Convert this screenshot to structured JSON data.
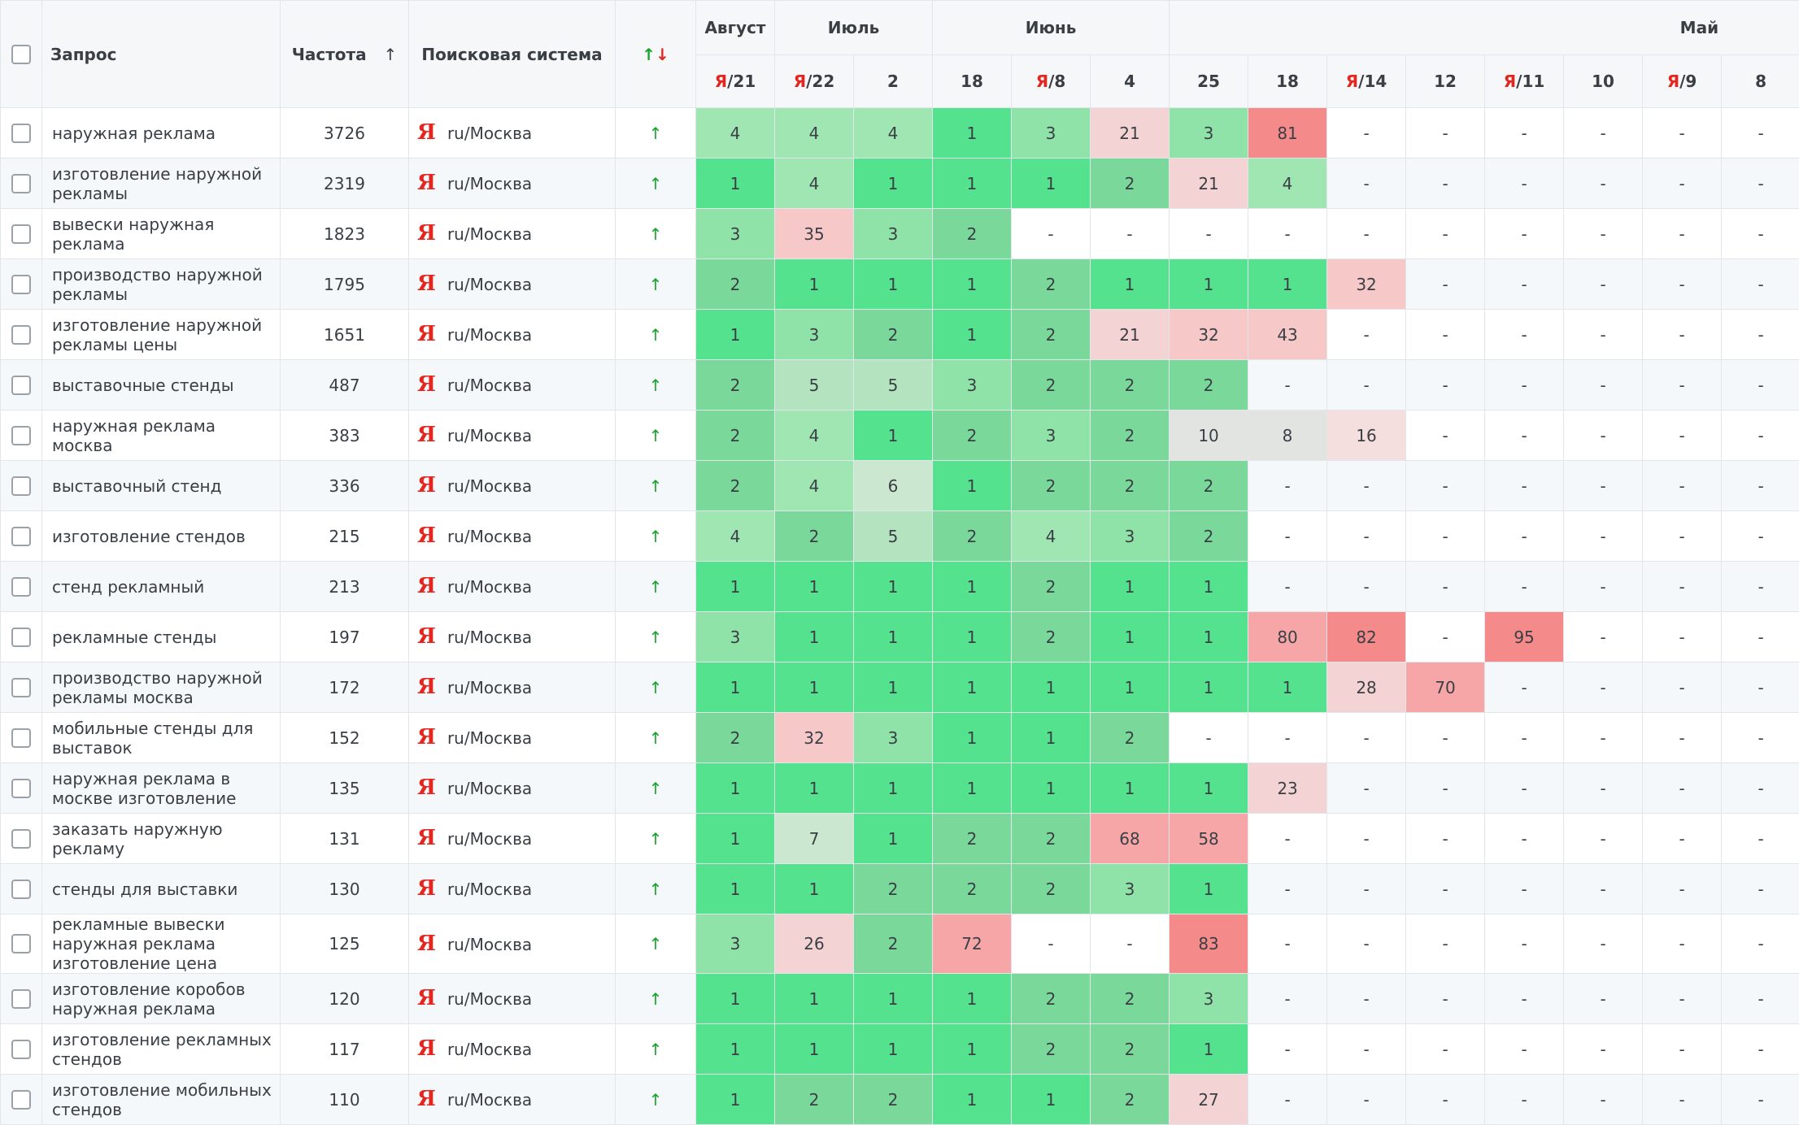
{
  "header": {
    "query": "Запрос",
    "frequency": "Частота",
    "frequency_sort": "↑",
    "engine": "Поисковая система",
    "trend": "↑↓",
    "groups": [
      {
        "label": "Август",
        "dates": [
          "Я/21"
        ]
      },
      {
        "label": "Июль",
        "dates": [
          "Я/22",
          "2"
        ]
      },
      {
        "label": "Июнь",
        "dates": [
          "18",
          "Я/8",
          "4"
        ]
      },
      {
        "label": "Май",
        "dates": [
          "25",
          "18",
          "Я/14",
          "12",
          "Я/11",
          "10",
          "Я/9",
          "8"
        ]
      }
    ]
  },
  "rows": [
    {
      "query": "наружная реклама",
      "frequency": 3726,
      "engine": "Я",
      "region": "ru/Москва",
      "trend": "↑",
      "positions": [
        4,
        4,
        4,
        1,
        3,
        21,
        3,
        81,
        "-",
        "-",
        "-",
        "-",
        "-",
        "-"
      ]
    },
    {
      "query": "изготовление наружной рекламы",
      "frequency": 2319,
      "engine": "Я",
      "region": "ru/Москва",
      "trend": "↑",
      "positions": [
        1,
        4,
        1,
        1,
        1,
        2,
        21,
        4,
        "-",
        "-",
        "-",
        "-",
        "-",
        "-"
      ]
    },
    {
      "query": "вывески наружная реклама",
      "frequency": 1823,
      "engine": "Я",
      "region": "ru/Москва",
      "trend": "↑",
      "positions": [
        3,
        35,
        3,
        2,
        "-",
        "-",
        "-",
        "-",
        "-",
        "-",
        "-",
        "-",
        "-",
        "-"
      ]
    },
    {
      "query": "производство наружной рекламы",
      "frequency": 1795,
      "engine": "Я",
      "region": "ru/Москва",
      "trend": "↑",
      "positions": [
        2,
        1,
        1,
        1,
        2,
        1,
        1,
        1,
        32,
        "-",
        "-",
        "-",
        "-",
        "-"
      ]
    },
    {
      "query": "изготовление наружной рекламы цены",
      "frequency": 1651,
      "engine": "Я",
      "region": "ru/Москва",
      "trend": "↑",
      "positions": [
        1,
        3,
        2,
        1,
        2,
        21,
        32,
        43,
        "-",
        "-",
        "-",
        "-",
        "-",
        "-"
      ]
    },
    {
      "query": "выставочные стенды",
      "frequency": 487,
      "engine": "Я",
      "region": "ru/Москва",
      "trend": "↑",
      "positions": [
        2,
        5,
        5,
        3,
        2,
        2,
        2,
        "-",
        "-",
        "-",
        "-",
        "-",
        "-",
        "-"
      ]
    },
    {
      "query": "наружная реклама москва",
      "frequency": 383,
      "engine": "Я",
      "region": "ru/Москва",
      "trend": "↑",
      "positions": [
        2,
        4,
        1,
        2,
        3,
        2,
        10,
        8,
        16,
        "-",
        "-",
        "-",
        "-",
        "-"
      ]
    },
    {
      "query": "выставочный стенд",
      "frequency": 336,
      "engine": "Я",
      "region": "ru/Москва",
      "trend": "↑",
      "positions": [
        2,
        4,
        6,
        1,
        2,
        2,
        2,
        "-",
        "-",
        "-",
        "-",
        "-",
        "-",
        "-"
      ]
    },
    {
      "query": "изготовление стендов",
      "frequency": 215,
      "engine": "Я",
      "region": "ru/Москва",
      "trend": "↑",
      "positions": [
        4,
        2,
        5,
        2,
        4,
        3,
        2,
        "-",
        "-",
        "-",
        "-",
        "-",
        "-",
        "-"
      ]
    },
    {
      "query": "стенд рекламный",
      "frequency": 213,
      "engine": "Я",
      "region": "ru/Москва",
      "trend": "↑",
      "positions": [
        1,
        1,
        1,
        1,
        2,
        1,
        1,
        "-",
        "-",
        "-",
        "-",
        "-",
        "-",
        "-"
      ]
    },
    {
      "query": "рекламные стенды",
      "frequency": 197,
      "engine": "Я",
      "region": "ru/Москва",
      "trend": "↑",
      "positions": [
        3,
        1,
        1,
        1,
        2,
        1,
        1,
        80,
        82,
        "-",
        95,
        "-",
        "-",
        "-"
      ]
    },
    {
      "query": "производство наружной рекламы москва",
      "frequency": 172,
      "engine": "Я",
      "region": "ru/Москва",
      "trend": "↑",
      "positions": [
        1,
        1,
        1,
        1,
        1,
        1,
        1,
        1,
        28,
        70,
        "-",
        "-",
        "-",
        "-"
      ]
    },
    {
      "query": "мобильные стенды для выставок",
      "frequency": 152,
      "engine": "Я",
      "region": "ru/Москва",
      "trend": "↑",
      "positions": [
        2,
        32,
        3,
        1,
        1,
        2,
        "-",
        "-",
        "-",
        "-",
        "-",
        "-",
        "-",
        "-"
      ]
    },
    {
      "query": "наружная реклама в москве изготовление",
      "frequency": 135,
      "engine": "Я",
      "region": "ru/Москва",
      "trend": "↑",
      "positions": [
        1,
        1,
        1,
        1,
        1,
        1,
        1,
        23,
        "-",
        "-",
        "-",
        "-",
        "-",
        "-"
      ]
    },
    {
      "query": "заказать наружную рекламу",
      "frequency": 131,
      "engine": "Я",
      "region": "ru/Москва",
      "trend": "↑",
      "positions": [
        1,
        7,
        1,
        2,
        2,
        68,
        58,
        "-",
        "-",
        "-",
        "-",
        "-",
        "-",
        "-"
      ]
    },
    {
      "query": "стенды для выставки",
      "frequency": 130,
      "engine": "Я",
      "region": "ru/Москва",
      "trend": "↑",
      "positions": [
        1,
        1,
        2,
        2,
        2,
        3,
        1,
        "-",
        "-",
        "-",
        "-",
        "-",
        "-",
        "-"
      ]
    },
    {
      "query": "рекламные вывески наружная реклама изготовление цена",
      "frequency": 125,
      "engine": "Я",
      "region": "ru/Москва",
      "trend": "↑",
      "positions": [
        3,
        26,
        2,
        72,
        "-",
        "-",
        83,
        "-",
        "-",
        "-",
        "-",
        "-",
        "-",
        "-"
      ]
    },
    {
      "query": "изготовление коробов наружная реклама",
      "frequency": 120,
      "engine": "Я",
      "region": "ru/Москва",
      "trend": "↑",
      "positions": [
        1,
        1,
        1,
        1,
        2,
        2,
        3,
        "-",
        "-",
        "-",
        "-",
        "-",
        "-",
        "-"
      ]
    },
    {
      "query": "изготовление рекламных стендов",
      "frequency": 117,
      "engine": "Я",
      "region": "ru/Москва",
      "trend": "↑",
      "positions": [
        1,
        1,
        1,
        1,
        2,
        2,
        1,
        "-",
        "-",
        "-",
        "-",
        "-",
        "-",
        "-"
      ]
    },
    {
      "query": "изготовление мобильных стендов",
      "frequency": 110,
      "engine": "Я",
      "region": "ru/Москва",
      "trend": "↑",
      "positions": [
        1,
        2,
        2,
        1,
        1,
        2,
        27,
        "-",
        "-",
        "-",
        "-",
        "-",
        "-",
        "-"
      ]
    }
  ]
}
